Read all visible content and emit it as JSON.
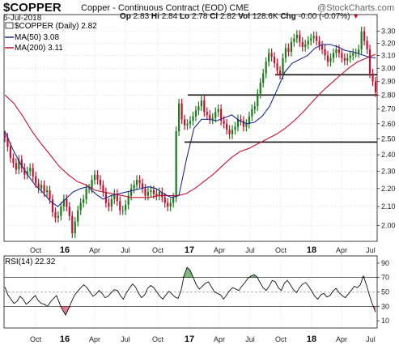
{
  "header": {
    "symbol": "$COPPER",
    "description": "Copper - Continuous Contract (EOD)",
    "exchange": "CME",
    "date": "6-Jul-2018",
    "open_label": "Op",
    "open": "2.83",
    "high_label": "Hi",
    "high": "2.84",
    "low_label": "Lo",
    "low": "2.78",
    "close_label": "Cl",
    "close": "2.82",
    "volume_label": "Vol",
    "volume": "128.6K",
    "change_label": "Chg",
    "change": "-0.00 (-0.07%)",
    "brand": "@StockCharts.com"
  },
  "legend": {
    "price": "$COPPER (Daily) 2.82",
    "ma50": "MA(50) 3.08",
    "ma200": "MA(200) 3.11",
    "rsi": "RSI(14) 22.32"
  },
  "colors": {
    "up": "#1a7a1a",
    "down": "#c8102e",
    "ma50": "#1c2a8c",
    "ma200": "#c8102e",
    "rsi": "#111111",
    "rsi_fill_over": "#1a7a1a",
    "rsi_fill_under": "#c8102e",
    "grid": "#cfcfcf"
  },
  "chart_data": [
    {
      "type": "line",
      "title": "",
      "x_ticks": [
        "Oct",
        "16",
        "Apr",
        "Jul",
        "Oct",
        "17",
        "Apr",
        "Jul",
        "Oct",
        "18",
        "Apr",
        "Jul"
      ],
      "x_tick_bold": [
        false,
        true,
        false,
        false,
        false,
        true,
        false,
        false,
        false,
        true,
        false,
        false
      ],
      "y_ticks": [
        2.0,
        2.1,
        2.2,
        2.3,
        2.4,
        2.5,
        2.6,
        2.7,
        2.8,
        2.9,
        3.0,
        3.1,
        3.2,
        3.3
      ],
      "ylim": [
        1.92,
        3.36
      ],
      "log_scale": true,
      "grid": true,
      "series": [
        {
          "name": "$COPPER",
          "values": [
            2.51,
            2.45,
            2.38,
            2.35,
            2.31,
            2.37,
            2.32,
            2.28,
            2.3,
            2.32,
            2.27,
            2.23,
            2.2,
            2.22,
            2.18,
            2.19,
            2.14,
            2.07,
            2.04,
            2.05,
            2.1,
            2.14,
            2.1,
            2.05,
            1.96,
            2.02,
            2.08,
            2.12,
            2.14,
            2.2,
            2.2,
            2.25,
            2.28,
            2.25,
            2.22,
            2.18,
            2.12,
            2.1,
            2.14,
            2.17,
            2.13,
            2.08,
            2.08,
            2.11,
            2.16,
            2.2,
            2.22,
            2.25,
            2.23,
            2.2,
            2.16,
            2.18,
            2.19,
            2.17,
            2.16,
            2.18,
            2.15,
            2.12,
            2.1,
            2.12,
            2.15,
            2.55,
            2.74,
            2.63,
            2.59,
            2.6,
            2.62,
            2.65,
            2.69,
            2.72,
            2.76,
            2.68,
            2.66,
            2.63,
            2.64,
            2.68,
            2.7,
            2.62,
            2.6,
            2.56,
            2.53,
            2.56,
            2.58,
            2.63,
            2.62,
            2.58,
            2.6,
            2.65,
            2.7,
            2.72,
            2.81,
            2.89,
            2.96,
            3.05,
            3.12,
            3.09,
            3.04,
            2.98,
            2.95,
            3.08,
            3.16,
            3.13,
            3.21,
            3.24,
            3.27,
            3.21,
            3.17,
            3.19,
            3.22,
            3.24,
            3.26,
            3.22,
            3.18,
            3.15,
            3.1,
            3.05,
            3.08,
            3.12,
            3.15,
            3.12,
            3.08,
            3.06,
            3.08,
            3.1,
            3.12,
            3.12,
            3.15,
            3.3,
            3.22,
            3.15,
            2.96,
            2.9,
            2.82
          ]
        },
        {
          "name": "MA(50)",
          "values": [
            2.55,
            2.44,
            2.35,
            2.28,
            2.22,
            2.18,
            2.13,
            2.1,
            2.14,
            2.18,
            2.2,
            2.21,
            2.17,
            2.14,
            2.16,
            2.17,
            2.18,
            2.19,
            2.2,
            2.21,
            2.2,
            2.17,
            2.15,
            2.16,
            2.37,
            2.57,
            2.63,
            2.63,
            2.62,
            2.64,
            2.66,
            2.62,
            2.6,
            2.61,
            2.65,
            2.72,
            2.84,
            2.97,
            3.04,
            3.07,
            3.1,
            3.16,
            3.19,
            3.19,
            3.17,
            3.14,
            3.13,
            3.11,
            3.09,
            3.08
          ]
        },
        {
          "name": "MA(200)",
          "values": [
            2.8,
            2.74,
            2.65,
            2.55,
            2.47,
            2.4,
            2.33,
            2.28,
            2.24,
            2.22,
            2.19,
            2.18,
            2.17,
            2.16,
            2.15,
            2.15,
            2.15,
            2.16,
            2.16,
            2.16,
            2.17,
            2.2,
            2.24,
            2.28,
            2.33,
            2.38,
            2.42,
            2.44,
            2.47,
            2.5,
            2.53,
            2.57,
            2.62,
            2.68,
            2.75,
            2.82,
            2.88,
            2.94,
            3.0,
            3.05,
            3.08,
            3.11
          ]
        }
      ],
      "horizontal_lines": [
        2.95,
        2.8,
        2.48
      ]
    },
    {
      "type": "line",
      "title": "",
      "y_ticks": [
        10,
        30,
        50,
        70,
        90
      ],
      "ylim": [
        0,
        100
      ],
      "reference_lines": [
        30,
        50,
        70
      ],
      "series": [
        {
          "name": "RSI(14)",
          "values": [
            57,
            46,
            40,
            34,
            37,
            44,
            40,
            33,
            36,
            41,
            45,
            38,
            34,
            33,
            30,
            36,
            41,
            45,
            34,
            25,
            18,
            27,
            37,
            46,
            51,
            56,
            60,
            56,
            50,
            44,
            47,
            52,
            48,
            42,
            44,
            49,
            53,
            52,
            45,
            40,
            49,
            55,
            61,
            57,
            48,
            42,
            46,
            55,
            59,
            56,
            50,
            44,
            40,
            46,
            51,
            47,
            43,
            41,
            52,
            73,
            84,
            80,
            70,
            60,
            54,
            58,
            62,
            64,
            57,
            50,
            48,
            46,
            40,
            46,
            52,
            56,
            54,
            52,
            58,
            63,
            69,
            72,
            74,
            71,
            63,
            56,
            52,
            58,
            66,
            64,
            56,
            52,
            62,
            66,
            60,
            53,
            49,
            56,
            61,
            63,
            58,
            51,
            44,
            40,
            46,
            48,
            43,
            45,
            51,
            55,
            49,
            45,
            42,
            47,
            52,
            58,
            56,
            60,
            72,
            60,
            45,
            33,
            22
          ]
        }
      ]
    }
  ]
}
